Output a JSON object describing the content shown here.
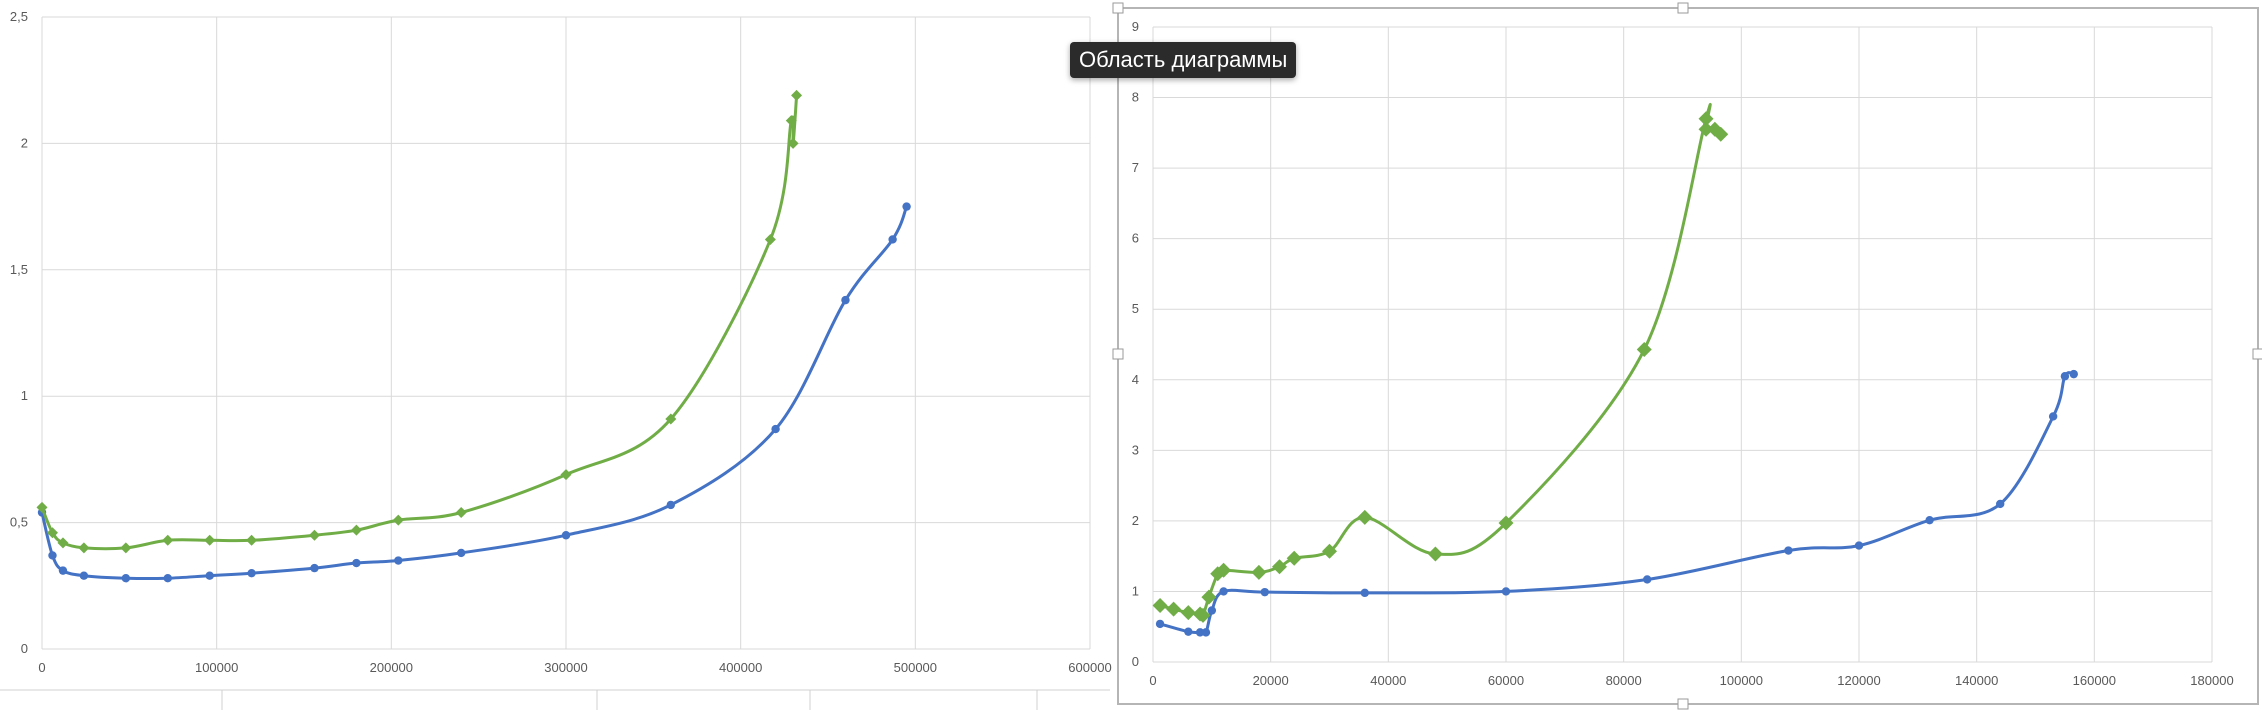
{
  "tooltip": "Область диаграммы",
  "colors": {
    "blue": "#4472C4",
    "green": "#70AD47",
    "grid": "#D9D9D9",
    "text": "#595959"
  },
  "chart_data": [
    {
      "type": "scatter",
      "xlim": [
        0,
        600000
      ],
      "ylim": [
        0,
        2.5
      ],
      "x_ticks": [
        0,
        100000,
        200000,
        300000,
        400000,
        500000,
        600000
      ],
      "x_tick_labels": [
        "0",
        "100000",
        "200000",
        "300000",
        "400000",
        "500000",
        "600000"
      ],
      "y_ticks": [
        0,
        0.5,
        1,
        1.5,
        2,
        2.5
      ],
      "y_tick_labels": [
        "0",
        "0,5",
        "1",
        "1,5",
        "2",
        "2,5"
      ],
      "grid": true,
      "series": [
        {
          "color": "blue",
          "marker": "circle",
          "points": [
            [
              0,
              0.54
            ],
            [
              6000,
              0.37
            ],
            [
              12000,
              0.31
            ],
            [
              24000,
              0.29
            ],
            [
              48000,
              0.28
            ],
            [
              72000,
              0.28
            ],
            [
              96000,
              0.29
            ],
            [
              120000,
              0.3
            ],
            [
              156000,
              0.32
            ],
            [
              180000,
              0.34
            ],
            [
              204000,
              0.35
            ],
            [
              240000,
              0.38
            ],
            [
              300000,
              0.45
            ],
            [
              360000,
              0.57
            ],
            [
              420000,
              0.87
            ],
            [
              460000,
              1.38
            ],
            [
              487000,
              1.62
            ],
            [
              495000,
              1.75
            ]
          ]
        },
        {
          "color": "green",
          "marker": "diamond",
          "points": [
            [
              0,
              0.56
            ],
            [
              6000,
              0.46
            ],
            [
              12000,
              0.42
            ],
            [
              24000,
              0.4
            ],
            [
              48000,
              0.4
            ],
            [
              72000,
              0.43
            ],
            [
              96000,
              0.43
            ],
            [
              120000,
              0.43
            ],
            [
              156000,
              0.45
            ],
            [
              180000,
              0.47
            ],
            [
              204000,
              0.51
            ],
            [
              240000,
              0.54
            ],
            [
              300000,
              0.69
            ],
            [
              360000,
              0.91
            ],
            [
              417000,
              1.62
            ],
            [
              429000,
              2.09
            ],
            [
              430000,
              2.0
            ],
            [
              432000,
              2.19
            ]
          ]
        }
      ]
    },
    {
      "type": "scatter",
      "xlim": [
        0,
        180000
      ],
      "ylim": [
        0,
        9
      ],
      "x_ticks": [
        0,
        20000,
        40000,
        60000,
        80000,
        100000,
        120000,
        140000,
        160000,
        180000
      ],
      "x_tick_labels": [
        "0",
        "20000",
        "40000",
        "60000",
        "80000",
        "100000",
        "120000",
        "140000",
        "160000",
        "180000"
      ],
      "y_ticks": [
        0,
        1,
        2,
        3,
        4,
        5,
        6,
        7,
        8,
        9
      ],
      "y_tick_labels": [
        "0",
        "1",
        "2",
        "3",
        "4",
        "5",
        "6",
        "7",
        "8",
        "9"
      ],
      "grid": true,
      "series": [
        {
          "color": "blue",
          "marker": "circle",
          "points": [
            [
              1200,
              0.54
            ],
            [
              6000,
              0.43
            ],
            [
              8000,
              0.42
            ],
            [
              9000,
              0.42
            ],
            [
              10000,
              0.73
            ],
            [
              12000,
              1.0
            ],
            [
              19000,
              0.99
            ],
            [
              36000,
              0.98
            ],
            [
              60000,
              1.0
            ],
            [
              84000,
              1.17
            ],
            [
              108000,
              1.58
            ],
            [
              120000,
              1.65
            ],
            [
              132000,
              2.01
            ],
            [
              144000,
              2.24
            ],
            [
              153000,
              3.48
            ],
            [
              155000,
              4.05
            ],
            [
              156500,
              4.08
            ]
          ]
        },
        {
          "color": "green",
          "marker": "diamond",
          "points": [
            [
              1200,
              0.8
            ],
            [
              3500,
              0.75
            ],
            [
              6000,
              0.7
            ],
            [
              8000,
              0.68
            ],
            [
              8500,
              0.66
            ],
            [
              9500,
              0.92
            ],
            [
              11000,
              1.25
            ],
            [
              12000,
              1.3
            ],
            [
              18000,
              1.27
            ],
            [
              21500,
              1.35
            ],
            [
              24000,
              1.47
            ],
            [
              30000,
              1.57
            ],
            [
              36000,
              2.05
            ],
            [
              48000,
              1.53
            ],
            [
              60000,
              1.97
            ],
            [
              83500,
              4.43
            ],
            [
              94000,
              7.7
            ],
            [
              94000,
              7.55
            ],
            [
              95500,
              7.55
            ],
            [
              96500,
              7.48
            ]
          ]
        }
      ]
    }
  ]
}
